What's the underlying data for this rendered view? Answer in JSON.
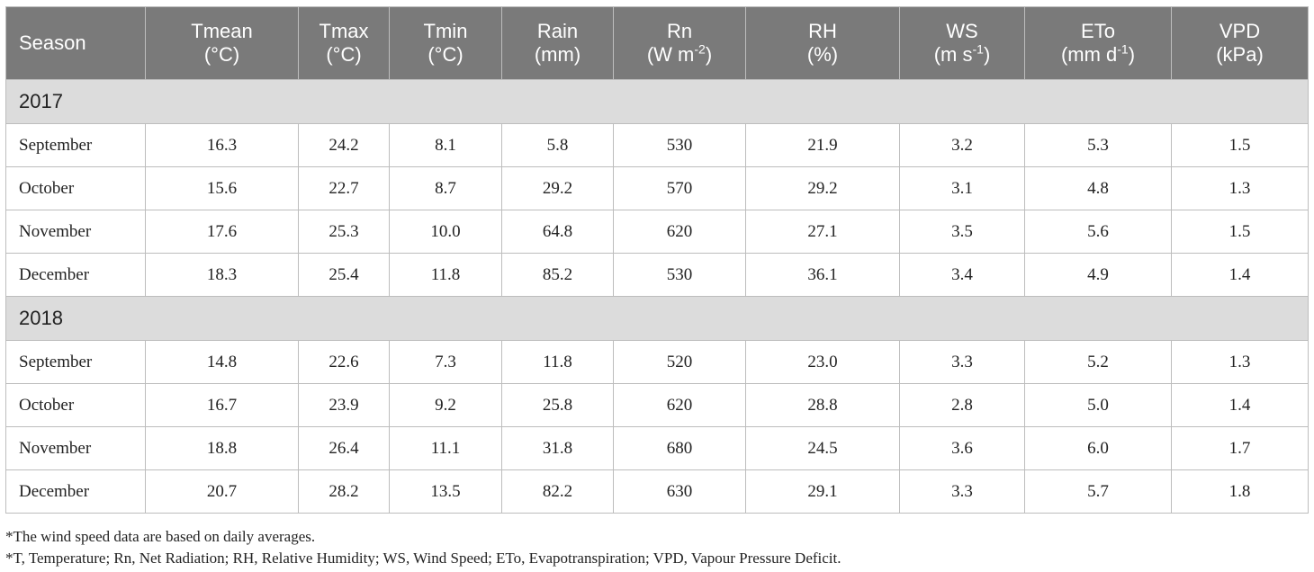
{
  "header": {
    "season": "Season",
    "columns": [
      {
        "name": "Tmean",
        "unit_pre": "(°C)",
        "sup": "",
        "unit_post": ""
      },
      {
        "name": "Tmax",
        "unit_pre": "(°C)",
        "sup": "",
        "unit_post": ""
      },
      {
        "name": "Tmin",
        "unit_pre": "(°C)",
        "sup": "",
        "unit_post": ""
      },
      {
        "name": "Rain",
        "unit_pre": "(mm)",
        "sup": "",
        "unit_post": ""
      },
      {
        "name": "Rn",
        "unit_pre": "(W m",
        "sup": "-2",
        "unit_post": ")"
      },
      {
        "name": "RH",
        "unit_pre": "(%)",
        "sup": "",
        "unit_post": ""
      },
      {
        "name": "WS",
        "unit_pre": "(m s",
        "sup": "-1",
        "unit_post": ")"
      },
      {
        "name": "ETo",
        "unit_pre": "(mm d",
        "sup": "-1",
        "unit_post": ")"
      },
      {
        "name": "VPD",
        "unit_pre": "(kPa)",
        "sup": "",
        "unit_post": ""
      }
    ]
  },
  "groups": [
    {
      "label": "2017",
      "rows": [
        {
          "month": "September",
          "values": [
            "16.3",
            "24.2",
            "8.1",
            "5.8",
            "530",
            "21.9",
            "3.2",
            "5.3",
            "1.5"
          ]
        },
        {
          "month": "October",
          "values": [
            "15.6",
            "22.7",
            "8.7",
            "29.2",
            "570",
            "29.2",
            "3.1",
            "4.8",
            "1.3"
          ]
        },
        {
          "month": "November",
          "values": [
            "17.6",
            "25.3",
            "10.0",
            "64.8",
            "620",
            "27.1",
            "3.5",
            "5.6",
            "1.5"
          ]
        },
        {
          "month": "December",
          "values": [
            "18.3",
            "25.4",
            "11.8",
            "85.2",
            "530",
            "36.1",
            "3.4",
            "4.9",
            "1.4"
          ]
        }
      ]
    },
    {
      "label": "2018",
      "rows": [
        {
          "month": "September",
          "values": [
            "14.8",
            "22.6",
            "7.3",
            "11.8",
            "520",
            "23.0",
            "3.3",
            "5.2",
            "1.3"
          ]
        },
        {
          "month": "October",
          "values": [
            "16.7",
            "23.9",
            "9.2",
            "25.8",
            "620",
            "28.8",
            "2.8",
            "5.0",
            "1.4"
          ]
        },
        {
          "month": "November",
          "values": [
            "18.8",
            "26.4",
            "11.1",
            "31.8",
            "680",
            "24.5",
            "3.6",
            "6.0",
            "1.7"
          ]
        },
        {
          "month": "December",
          "values": [
            "20.7",
            "28.2",
            "13.5",
            "82.2",
            "630",
            "29.1",
            "3.3",
            "5.7",
            "1.8"
          ]
        }
      ]
    }
  ],
  "footnotes": [
    "*The wind speed data are based on daily averages.",
    "*T, Temperature; Rn, Net Radiation; RH, Relative Humidity; WS, Wind Speed; ETo, Evapotranspiration; VPD, Vapour Pressure Deficit."
  ]
}
